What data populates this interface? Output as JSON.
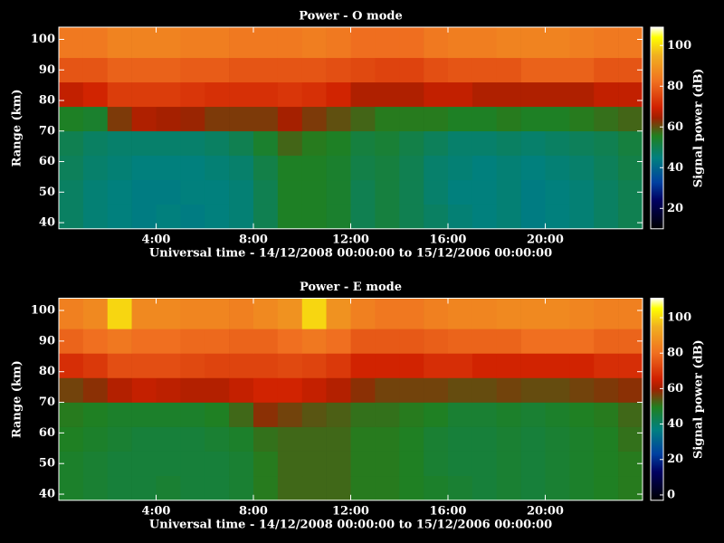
{
  "chart_data": [
    {
      "type": "heatmap",
      "title": "Power - O mode",
      "xlabel": "Universal time - 14/12/2008 00:00:00 to 15/12/2006 00:00:00",
      "ylabel": "Range (km)",
      "colorbar_label": "Signal power (dB)",
      "xlim": [
        0,
        24
      ],
      "ylim": [
        38,
        104
      ],
      "clim": [
        10,
        109
      ],
      "xticks": [
        {
          "value": 4,
          "label": "4:00"
        },
        {
          "value": 8,
          "label": "8:00"
        },
        {
          "value": 12,
          "label": "12:00"
        },
        {
          "value": 16,
          "label": "16:00"
        },
        {
          "value": 20,
          "label": "20:00"
        }
      ],
      "yticks": [
        40,
        50,
        60,
        70,
        80,
        90,
        100
      ],
      "cticks": [
        20,
        40,
        60,
        80,
        100
      ],
      "xbins": [
        0,
        1,
        2,
        3,
        4,
        5,
        6,
        7,
        8,
        9,
        10,
        11,
        12,
        13,
        14,
        15,
        16,
        17,
        18,
        19,
        20,
        21,
        22,
        23,
        24
      ],
      "ybins": [
        38,
        46,
        54,
        62,
        70,
        78,
        86,
        94,
        104
      ],
      "z": [
        [
          48,
          46,
          45,
          44,
          45,
          44,
          45,
          46,
          50,
          55,
          55,
          54,
          50,
          52,
          50,
          48,
          46,
          45,
          46,
          44,
          45,
          46,
          48,
          50
        ],
        [
          48,
          46,
          45,
          44,
          44,
          45,
          45,
          46,
          50,
          55,
          55,
          54,
          50,
          52,
          50,
          47,
          45,
          45,
          46,
          44,
          45,
          46,
          48,
          50
        ],
        [
          49,
          47,
          46,
          45,
          45,
          45,
          46,
          47,
          51,
          55,
          55,
          54,
          51,
          52,
          50,
          47,
          46,
          45,
          46,
          45,
          46,
          47,
          49,
          51
        ],
        [
          50,
          48,
          47,
          47,
          47,
          47,
          48,
          50,
          54,
          58,
          56,
          55,
          52,
          53,
          51,
          49,
          47,
          47,
          48,
          47,
          48,
          49,
          50,
          52
        ],
        [
          55,
          54,
          62,
          66,
          65,
          64,
          62,
          62,
          62,
          65,
          62,
          60,
          58,
          56,
          56,
          56,
          55,
          55,
          56,
          55,
          55,
          56,
          57,
          58
        ],
        [
          68,
          70,
          74,
          74,
          74,
          73,
          72,
          72,
          72,
          73,
          72,
          70,
          66,
          66,
          66,
          68,
          68,
          66,
          66,
          66,
          66,
          66,
          68,
          68
        ],
        [
          78,
          78,
          80,
          80,
          80,
          79,
          79,
          78,
          78,
          78,
          78,
          77,
          76,
          75,
          75,
          77,
          78,
          78,
          78,
          80,
          80,
          80,
          78,
          78
        ],
        [
          84,
          84,
          86,
          86,
          86,
          85,
          85,
          84,
          84,
          84,
          85,
          84,
          82,
          82,
          82,
          84,
          85,
          85,
          86,
          86,
          86,
          85,
          84,
          84
        ]
      ]
    },
    {
      "type": "heatmap",
      "title": "Power - E mode",
      "xlabel": "Universal time - 14/12/2008 00:00:00 to 15/12/2006 00:00:00",
      "ylabel": "Range (km)",
      "colorbar_label": "Signal power (dB)",
      "xlim": [
        0,
        24
      ],
      "ylim": [
        38,
        104
      ],
      "clim": [
        -3,
        111
      ],
      "xticks": [
        {
          "value": 4,
          "label": "4:00"
        },
        {
          "value": 8,
          "label": "8:00"
        },
        {
          "value": 12,
          "label": "12:00"
        },
        {
          "value": 16,
          "label": "16:00"
        },
        {
          "value": 20,
          "label": "20:00"
        }
      ],
      "yticks": [
        40,
        50,
        60,
        70,
        80,
        90,
        100
      ],
      "cticks": [
        0,
        20,
        40,
        60,
        80,
        100
      ],
      "xbins": [
        0,
        1,
        2,
        3,
        4,
        5,
        6,
        7,
        8,
        9,
        10,
        11,
        12,
        13,
        14,
        15,
        16,
        17,
        18,
        19,
        20,
        21,
        22,
        23,
        24
      ],
      "ybins": [
        38,
        46,
        54,
        62,
        70,
        78,
        86,
        94,
        104
      ],
      "z": [
        [
          48,
          47,
          46,
          46,
          47,
          46,
          46,
          47,
          50,
          52,
          52,
          52,
          50,
          50,
          49,
          48,
          47,
          46,
          47,
          46,
          47,
          48,
          49,
          50
        ],
        [
          48,
          47,
          46,
          46,
          46,
          46,
          46,
          47,
          50,
          52,
          52,
          52,
          50,
          50,
          49,
          47,
          46,
          46,
          47,
          46,
          47,
          48,
          49,
          50
        ],
        [
          49,
          48,
          47,
          46,
          46,
          46,
          47,
          48,
          51,
          52,
          52,
          52,
          50,
          50,
          49,
          47,
          46,
          46,
          47,
          46,
          47,
          48,
          49,
          51
        ],
        [
          50,
          49,
          48,
          48,
          48,
          48,
          49,
          52,
          58,
          56,
          54,
          53,
          51,
          51,
          50,
          49,
          47,
          47,
          48,
          47,
          48,
          49,
          50,
          52
        ],
        [
          56,
          58,
          62,
          64,
          63,
          62,
          62,
          64,
          66,
          66,
          64,
          62,
          58,
          56,
          56,
          56,
          55,
          55,
          56,
          55,
          55,
          56,
          57,
          58
        ],
        [
          68,
          70,
          74,
          74,
          74,
          73,
          72,
          72,
          72,
          73,
          72,
          70,
          66,
          66,
          66,
          68,
          68,
          66,
          66,
          66,
          66,
          66,
          68,
          68
        ],
        [
          78,
          80,
          82,
          80,
          80,
          79,
          79,
          78,
          78,
          80,
          82,
          80,
          76,
          76,
          76,
          77,
          78,
          78,
          78,
          80,
          80,
          80,
          78,
          78
        ],
        [
          84,
          86,
          100,
          86,
          86,
          85,
          85,
          84,
          86,
          88,
          100,
          88,
          84,
          82,
          82,
          84,
          85,
          85,
          86,
          86,
          86,
          85,
          84,
          84
        ]
      ]
    }
  ]
}
